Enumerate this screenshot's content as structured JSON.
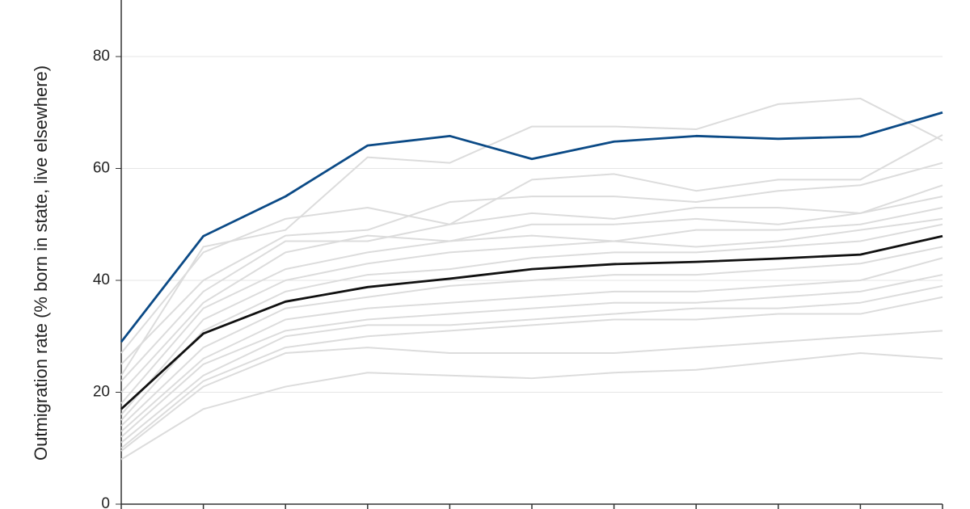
{
  "chart_data": {
    "type": "line",
    "y_label": "Outmigration rate (% born in state, live elsewhere)",
    "categories": [
      null,
      null,
      null,
      null,
      null,
      null,
      null,
      null,
      null,
      null,
      null
    ],
    "ylim": [
      0,
      90
    ],
    "yticks": [
      0,
      20,
      40,
      60,
      80
    ],
    "grid": true,
    "series": [
      {
        "color": "#dcdcdc",
        "values": [
          23,
          46,
          49,
          62,
          61,
          67.5,
          67.5,
          67,
          71.5,
          72.5,
          65
        ]
      },
      {
        "color": "#dcdcdc",
        "values": [
          27,
          45,
          51,
          53,
          50,
          58,
          59,
          56,
          58,
          58,
          66
        ]
      },
      {
        "color": "#dcdcdc",
        "values": [
          25,
          40,
          48,
          49,
          54,
          55,
          55,
          54,
          56,
          57,
          61
        ]
      },
      {
        "color": "#dcdcdc",
        "values": [
          22,
          38,
          47,
          47,
          50,
          52,
          51,
          53,
          53,
          52,
          57
        ]
      },
      {
        "color": "#dcdcdc",
        "values": [
          20,
          36,
          45,
          48,
          47,
          50,
          50,
          51,
          50,
          52,
          55
        ]
      },
      {
        "color": "#dcdcdc",
        "values": [
          18,
          35,
          42,
          45,
          47,
          48,
          47,
          49,
          49,
          50,
          53
        ]
      },
      {
        "color": "#dcdcdc",
        "values": [
          16,
          33,
          40,
          43,
          45,
          46,
          47,
          46,
          47,
          49,
          51
        ]
      },
      {
        "color": "#dcdcdc",
        "values": [
          15,
          31,
          38,
          41,
          42,
          44,
          45,
          45,
          46,
          47,
          50
        ]
      },
      {
        "color": "#dcdcdc",
        "values": [
          14,
          28,
          35,
          37,
          39,
          40,
          41,
          41,
          42,
          43,
          46
        ]
      },
      {
        "color": "#dcdcdc",
        "values": [
          13,
          26,
          33,
          35,
          36,
          37,
          38,
          38,
          39,
          40,
          44
        ]
      },
      {
        "color": "#dcdcdc",
        "values": [
          12,
          25,
          31,
          33,
          34,
          35,
          36,
          36,
          37,
          38,
          41
        ]
      },
      {
        "color": "#dcdcdc",
        "values": [
          11,
          23,
          30,
          32,
          32,
          33,
          34,
          35,
          35,
          36,
          39
        ]
      },
      {
        "color": "#dcdcdc",
        "values": [
          10,
          22,
          28,
          30,
          31,
          32,
          33,
          33,
          34,
          34,
          37
        ]
      },
      {
        "color": "#dcdcdc",
        "values": [
          9.5,
          21,
          27,
          28,
          27,
          27,
          27,
          28,
          29,
          30,
          31
        ]
      },
      {
        "color": "#dcdcdc",
        "values": [
          8,
          17,
          21,
          23.5,
          23,
          22.5,
          23.5,
          24,
          25.5,
          27,
          26
        ]
      },
      {
        "color": "#111111",
        "values": [
          17,
          30.5,
          36.2,
          38.8,
          40.3,
          42,
          42.9,
          43.3,
          43.9,
          44.6,
          47.9
        ]
      },
      {
        "color": "#0b4a86",
        "values": [
          29,
          47.9,
          55,
          64.1,
          65.8,
          61.7,
          64.8,
          65.8,
          65.3,
          65.7,
          70
        ]
      }
    ]
  }
}
